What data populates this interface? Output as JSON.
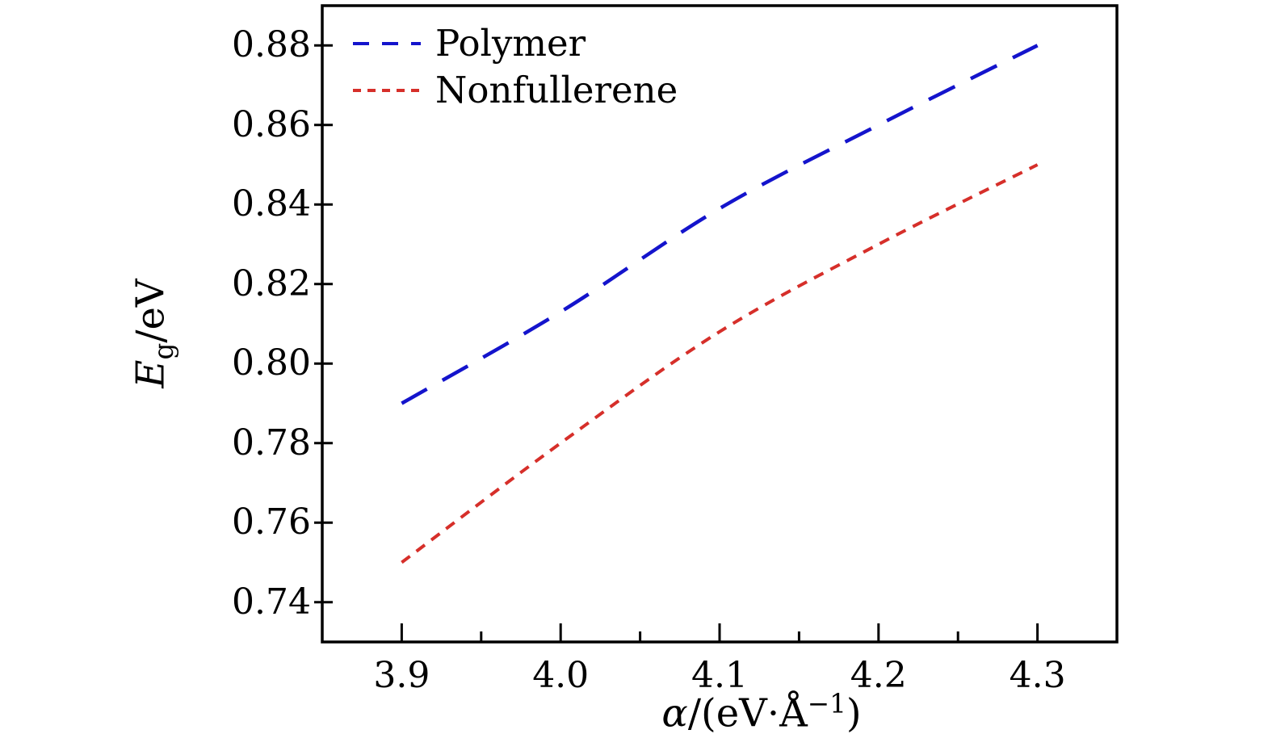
{
  "page": {
    "background": "#ffffff"
  },
  "chart_data": {
    "type": "line",
    "title": "",
    "xlabel": "α/(eV·Å⁻¹)",
    "ylabel": "E_g/eV",
    "xlabel_parts": {
      "variable": "α",
      "mid": "/(eV·Å",
      "sup": "−1",
      "end": ")"
    },
    "ylabel_parts": {
      "variable": "E",
      "sub": "g",
      "rest": "/eV"
    },
    "xlim": [
      3.85,
      4.35
    ],
    "ylim": [
      0.73,
      0.89
    ],
    "x_ticks": {
      "values": [
        3.9,
        4.0,
        4.1,
        4.2,
        4.3
      ],
      "labels": [
        "3.9",
        "4.0",
        "4.1",
        "4.2",
        "4.3"
      ],
      "minor": [
        3.95,
        4.05,
        4.15,
        4.25
      ]
    },
    "y_ticks": {
      "values": [
        0.74,
        0.76,
        0.78,
        0.8,
        0.82,
        0.84,
        0.86,
        0.88
      ],
      "labels": [
        "0.74",
        "0.76",
        "0.78",
        "0.80",
        "0.82",
        "0.84",
        "0.86",
        "0.88"
      ]
    },
    "grid": false,
    "frame_color": "#000000",
    "legend": {
      "position": "upper-left",
      "entries": [
        "Polymer",
        "Nonfullerene"
      ]
    },
    "series": [
      {
        "name": "Polymer",
        "color": "#1414cc",
        "line_style": "long-dash",
        "x": [
          3.9,
          4.0,
          4.1,
          4.2,
          4.3
        ],
        "y": [
          0.79,
          0.813,
          0.839,
          0.86,
          0.88
        ]
      },
      {
        "name": "Nonfullerene",
        "color": "#d62f2a",
        "line_style": "short-dash",
        "x": [
          3.9,
          4.0,
          4.1,
          4.2,
          4.3
        ],
        "y": [
          0.75,
          0.78,
          0.808,
          0.83,
          0.85
        ]
      }
    ]
  }
}
